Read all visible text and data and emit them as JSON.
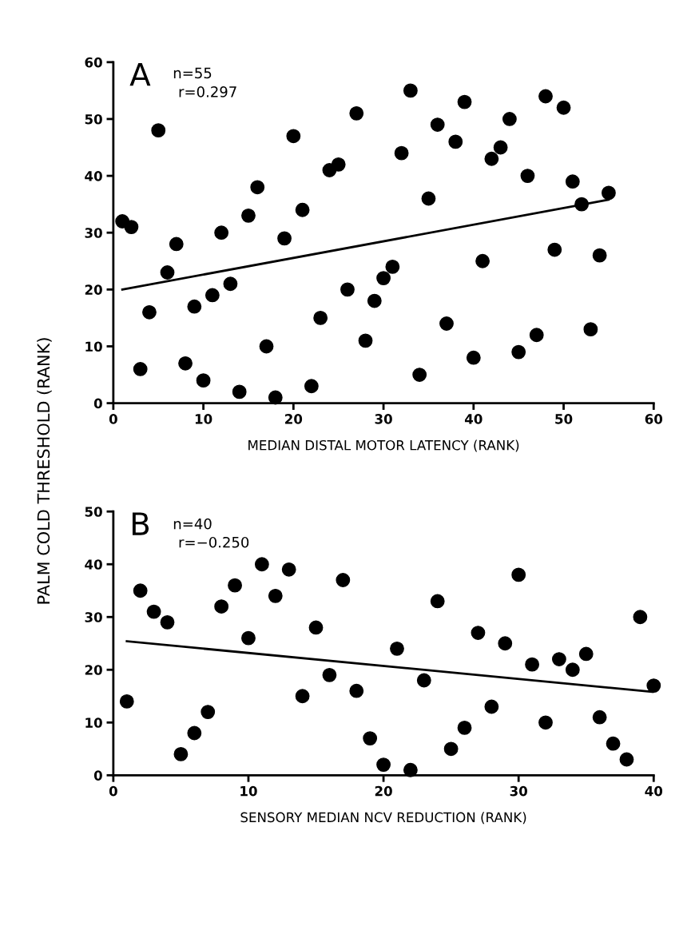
{
  "chart_data": [
    {
      "type": "scatter",
      "xlabel": "MEDIAN DISTAL MOTOR LATENCY (RANK)",
      "ylabel": "PALM COLD THRESHOLD (RANK)",
      "annotations": [
        "A",
        "n=55",
        "r=0.297"
      ],
      "xlim": [
        0,
        60
      ],
      "xticks": [
        0,
        10,
        20,
        30,
        40,
        50,
        60
      ],
      "ylim": [
        0,
        60
      ],
      "yticks": [
        0,
        10,
        20,
        30,
        40,
        50,
        60
      ],
      "grid": false,
      "legend": false,
      "series": [
        {
          "marker": "circle",
          "color": "#000000",
          "x": [
            1,
            2,
            3,
            4,
            5,
            6,
            7,
            8,
            9,
            10,
            11,
            12,
            13,
            14,
            15,
            16,
            17,
            18,
            19,
            20,
            21,
            22,
            23,
            24,
            25,
            26,
            27,
            28,
            29,
            30,
            31,
            32,
            33,
            34,
            35,
            36,
            37,
            38,
            39,
            40,
            41,
            42,
            43,
            44,
            45,
            46,
            47,
            48,
            49,
            50,
            51,
            52,
            53,
            54,
            55
          ],
          "values": [
            32,
            31,
            6,
            16,
            48,
            23,
            28,
            7,
            17,
            4,
            19,
            30,
            21,
            2,
            33,
            38,
            10,
            1,
            29,
            47,
            34,
            3,
            15,
            41,
            42,
            20,
            51,
            11,
            18,
            22,
            24,
            44,
            55,
            5,
            36,
            49,
            14,
            46,
            53,
            8,
            25,
            43,
            45,
            50,
            9,
            40,
            12,
            54,
            27,
            52,
            39,
            35,
            13,
            26,
            37
          ]
        },
        {
          "type": "line",
          "color": "#000000",
          "x": [
            1,
            55
          ],
          "values": [
            20,
            35.8
          ]
        }
      ]
    },
    {
      "type": "scatter",
      "xlabel": "SENSORY MEDIAN NCV REDUCTION (RANK)",
      "annotations": [
        "B",
        "n=40",
        "r=−0.250"
      ],
      "xlim": [
        0,
        40
      ],
      "xticks": [
        0,
        10,
        20,
        30,
        40
      ],
      "ylim": [
        0,
        50
      ],
      "yticks": [
        0,
        10,
        20,
        30,
        40,
        50
      ],
      "grid": false,
      "legend": false,
      "series": [
        {
          "marker": "circle",
          "color": "#000000",
          "x": [
            1,
            2,
            3,
            4,
            5,
            6,
            7,
            8,
            9,
            10,
            11,
            12,
            13,
            14,
            15,
            16,
            17,
            18,
            19,
            20,
            21,
            22,
            23,
            24,
            25,
            26,
            27,
            28,
            29,
            30,
            31,
            32,
            33,
            34,
            35,
            36,
            37,
            38,
            39,
            40
          ],
          "values": [
            14,
            35,
            31,
            29,
            4,
            8,
            12,
            32,
            36,
            26,
            40,
            34,
            39,
            15,
            28,
            19,
            37,
            16,
            7,
            2,
            24,
            1,
            18,
            33,
            5,
            9,
            27,
            13,
            25,
            38,
            21,
            10,
            22,
            20,
            23,
            11,
            6,
            3,
            30,
            17
          ]
        },
        {
          "type": "line",
          "color": "#000000",
          "x": [
            1,
            40
          ],
          "values": [
            25.4,
            15.8
          ]
        }
      ]
    }
  ]
}
